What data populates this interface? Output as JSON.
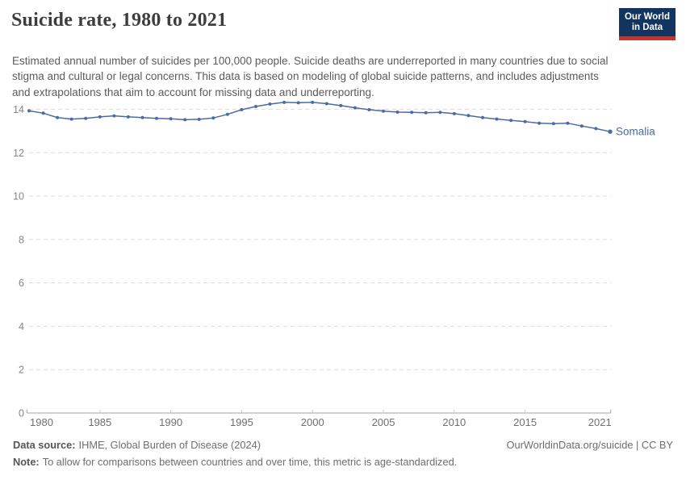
{
  "header": {
    "title": "Suicide rate, 1980 to 2021",
    "subtitle": "Estimated annual number of suicides per 100,000 people. Suicide deaths are underreported in many countries due to social stigma and cultural or legal concerns. This data is based on modeling of global suicide patterns, and includes adjustments and extrapolations that aim to account for missing data and underreporting.",
    "logo": {
      "line1": "Our World",
      "line2": "in Data"
    }
  },
  "colors": {
    "line": "#4a6ba3",
    "series_label": "#4a6ba3",
    "grid": "#dcdcdc",
    "axis": "#a3a3a3",
    "tick": "#c9c9c9",
    "x_tick_label": "#6f6f6f",
    "y_tick_label": "#858585",
    "logo_bg": "#12355f",
    "logo_accent": "#c5352c",
    "title_text": "#3d3d3d",
    "subtitle_text": "#5b5b5b",
    "footer_text": "#6e6e6e"
  },
  "chart_data": {
    "type": "line",
    "title": "Suicide rate, 1980 to 2021",
    "xlabel": "",
    "ylabel": "",
    "xlim": [
      1980,
      2021
    ],
    "ylim": [
      0,
      14
    ],
    "yticks": [
      0,
      2,
      4,
      6,
      8,
      10,
      12,
      14
    ],
    "xticks": [
      1980,
      1985,
      1990,
      1995,
      2000,
      2005,
      2010,
      2015,
      2021
    ],
    "grid": "horizontal-dashed",
    "legend_position": "end-of-line-label",
    "series": [
      {
        "name": "Somalia",
        "x": [
          1980,
          1981,
          1982,
          1983,
          1984,
          1985,
          1986,
          1987,
          1988,
          1989,
          1990,
          1991,
          1992,
          1993,
          1994,
          1995,
          1996,
          1997,
          1998,
          1999,
          2000,
          2001,
          2002,
          2003,
          2004,
          2005,
          2006,
          2007,
          2008,
          2009,
          2010,
          2011,
          2012,
          2013,
          2014,
          2015,
          2016,
          2017,
          2018,
          2019,
          2020,
          2021
        ],
        "values": [
          13.93,
          13.82,
          13.62,
          13.55,
          13.58,
          13.65,
          13.7,
          13.65,
          13.62,
          13.58,
          13.56,
          13.52,
          13.54,
          13.6,
          13.77,
          13.98,
          14.13,
          14.24,
          14.32,
          14.3,
          14.32,
          14.26,
          14.17,
          14.07,
          13.98,
          13.92,
          13.87,
          13.86,
          13.84,
          13.86,
          13.8,
          13.71,
          13.62,
          13.55,
          13.49,
          13.43,
          13.36,
          13.34,
          13.36,
          13.23,
          13.11,
          12.97
        ]
      }
    ]
  },
  "footer": {
    "datasource_label": "Data source:",
    "datasource_text": "IHME, Global Burden of Disease (2024)",
    "note_label": "Note:",
    "note_text": "To allow for comparisons between countries and over time, this metric is age-standardized.",
    "link": "OurWorldinData.org/suicide | CC BY"
  }
}
